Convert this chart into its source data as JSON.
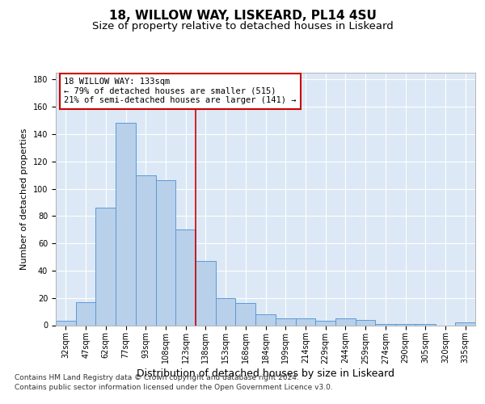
{
  "title1": "18, WILLOW WAY, LISKEARD, PL14 4SU",
  "title2": "Size of property relative to detached houses in Liskeard",
  "xlabel": "Distribution of detached houses by size in Liskeard",
  "ylabel": "Number of detached properties",
  "categories": [
    "32sqm",
    "47sqm",
    "62sqm",
    "77sqm",
    "93sqm",
    "108sqm",
    "123sqm",
    "138sqm",
    "153sqm",
    "168sqm",
    "184sqm",
    "199sqm",
    "214sqm",
    "229sqm",
    "244sqm",
    "259sqm",
    "274sqm",
    "290sqm",
    "305sqm",
    "320sqm",
    "335sqm"
  ],
  "values": [
    3,
    17,
    86,
    148,
    110,
    106,
    70,
    47,
    20,
    16,
    8,
    5,
    5,
    3,
    5,
    4,
    1,
    1,
    1,
    0,
    2
  ],
  "bar_color": "#b8d0ea",
  "bar_edge_color": "#5b9bd5",
  "vline_color": "#cc0000",
  "annotation_text": "18 WILLOW WAY: 133sqm\n← 79% of detached houses are smaller (515)\n21% of semi-detached houses are larger (141) →",
  "annotation_box_color": "#ffffff",
  "annotation_box_edge": "#cc0000",
  "ylim": [
    0,
    185
  ],
  "yticks": [
    0,
    20,
    40,
    60,
    80,
    100,
    120,
    140,
    160,
    180
  ],
  "footer1": "Contains HM Land Registry data © Crown copyright and database right 2024.",
  "footer2": "Contains public sector information licensed under the Open Government Licence v3.0.",
  "bg_color": "#dce8f5",
  "fig_bg_color": "#ffffff",
  "title1_fontsize": 11,
  "title2_fontsize": 9.5,
  "xlabel_fontsize": 9,
  "ylabel_fontsize": 8,
  "tick_fontsize": 7,
  "footer_fontsize": 6.5,
  "ann_fontsize": 7.5
}
